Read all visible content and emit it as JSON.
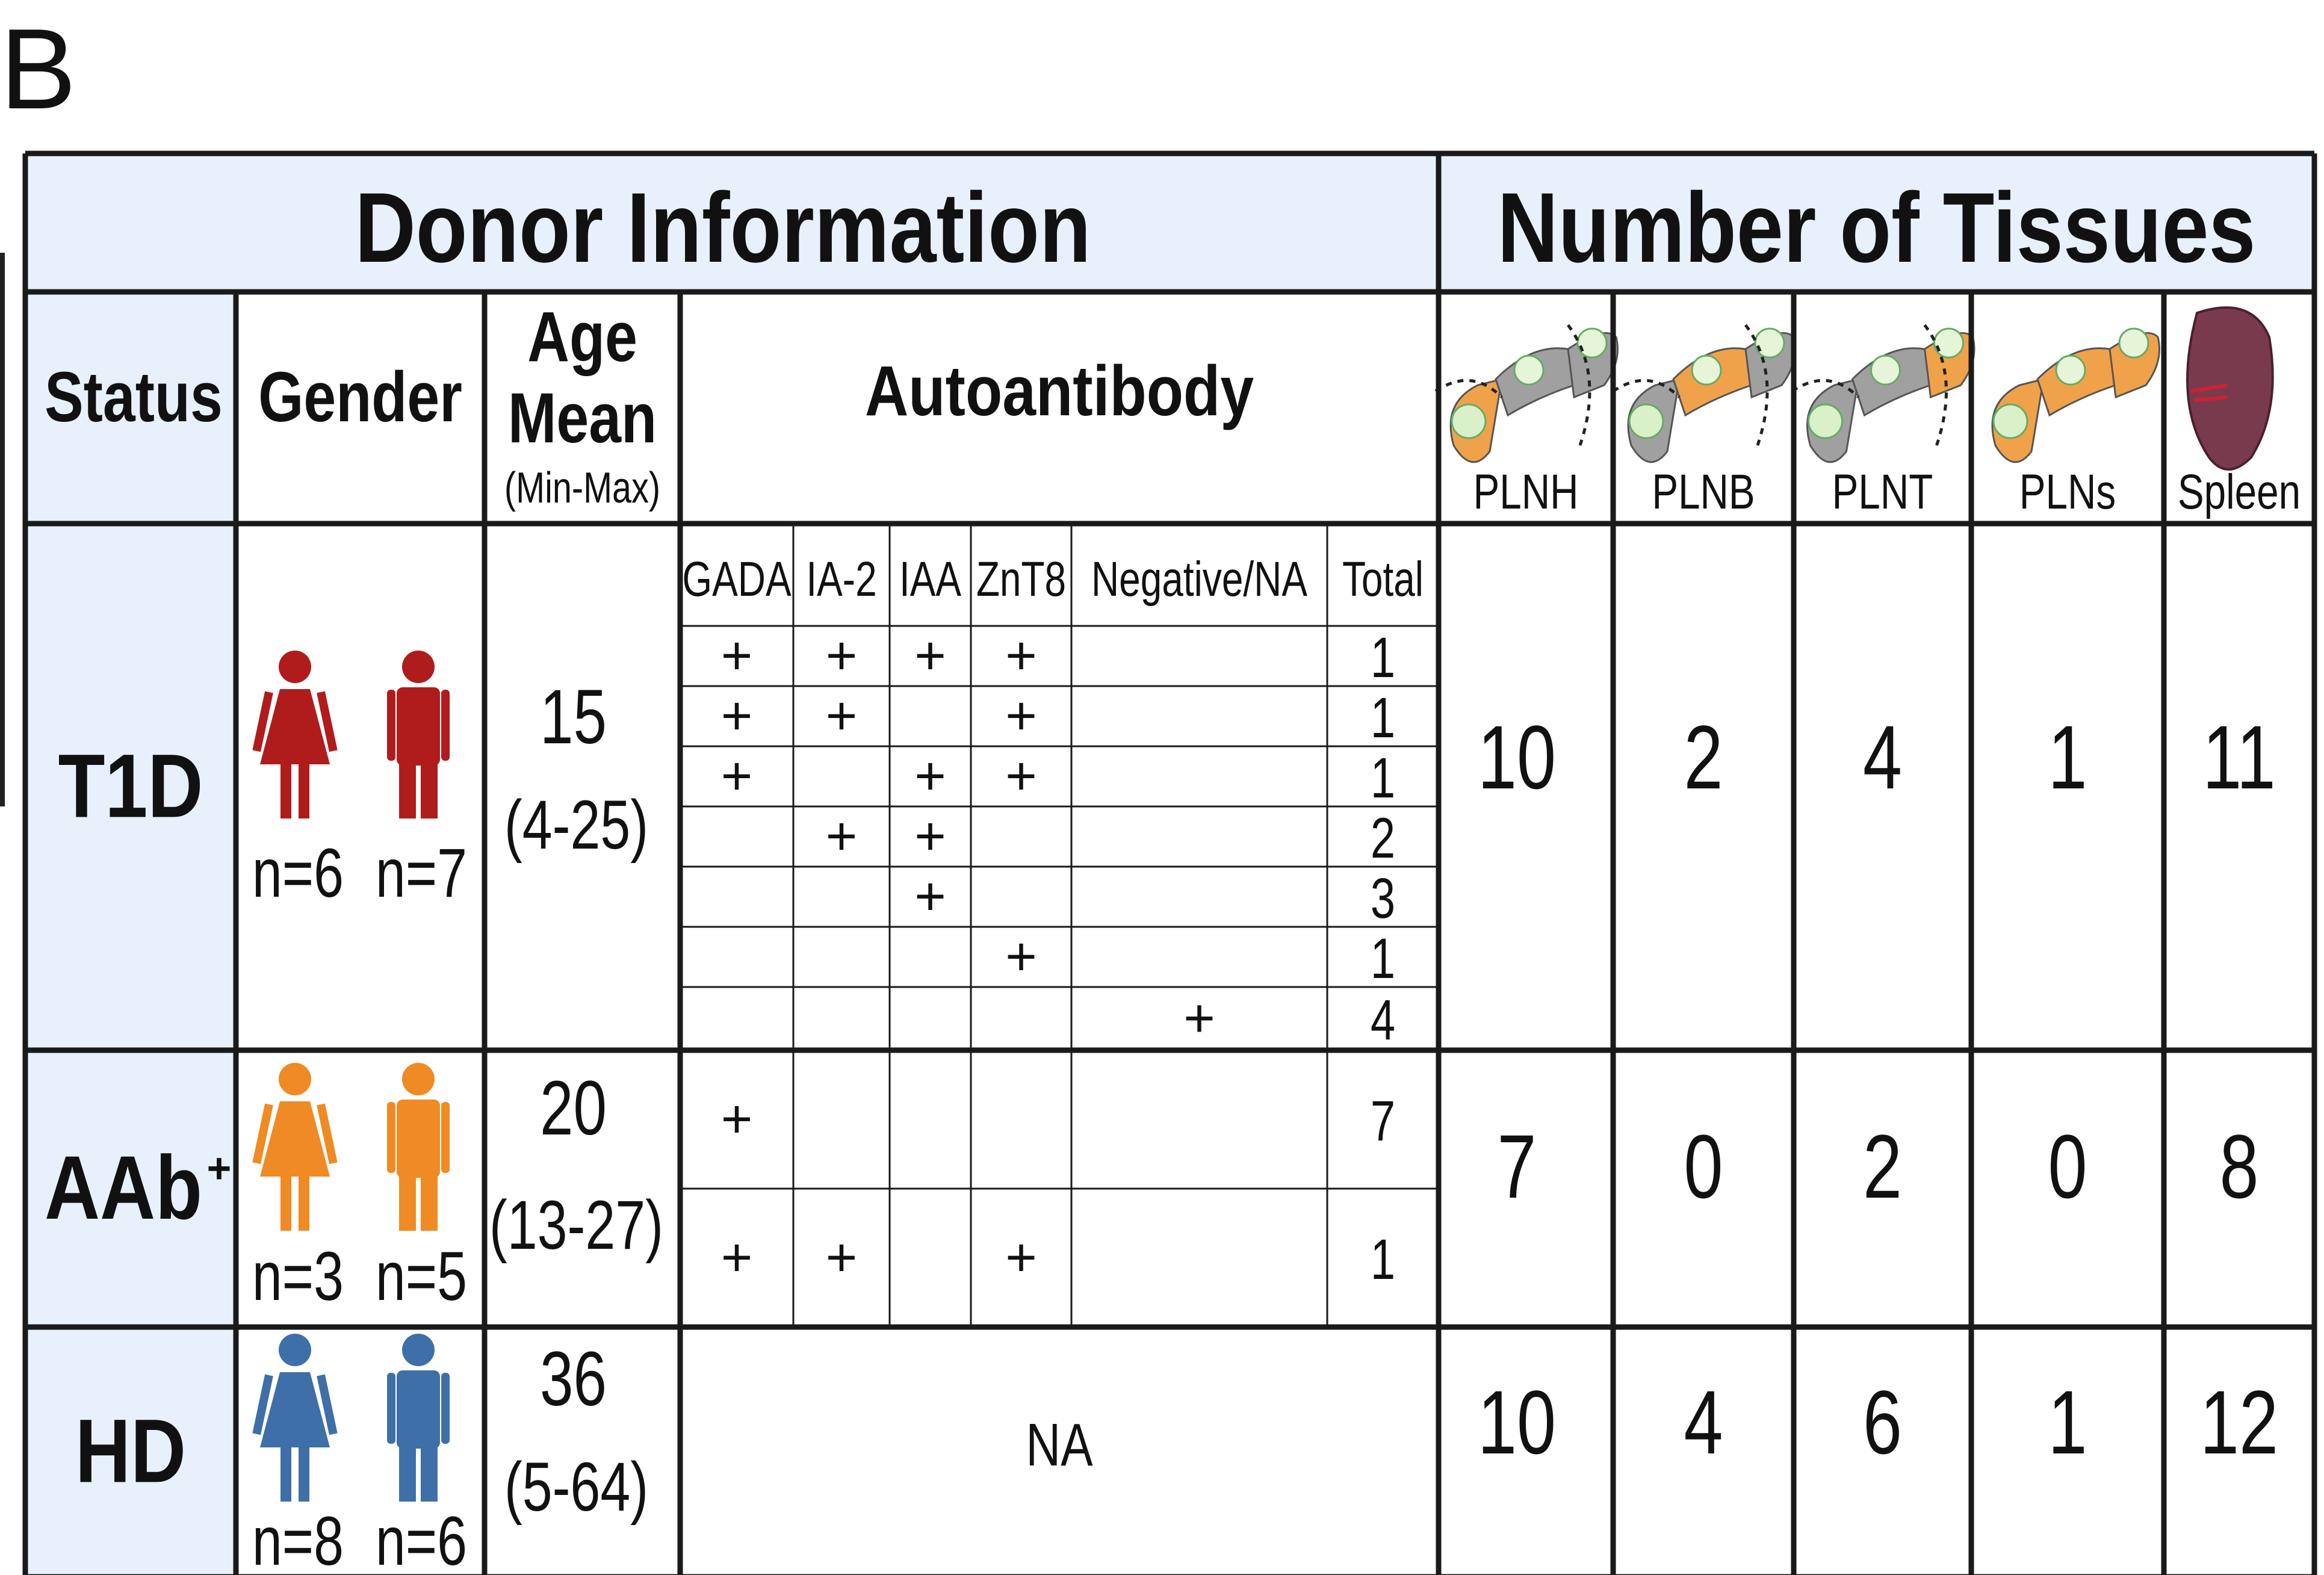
{
  "panel_label": "B",
  "headers": {
    "donor_information": "Donor Information",
    "number_of_tissues": "Number of Tissues",
    "status": "Status",
    "gender": "Gender",
    "age_line1": "Age",
    "age_line2": "Mean",
    "age_line3": "(Min-Max)",
    "autoantibody": "Autoantibody"
  },
  "tissues": [
    {
      "label": "PLNH",
      "icon": "pancreas-head-icon"
    },
    {
      "label": "PLNB",
      "icon": "pancreas-body-icon"
    },
    {
      "label": "PLNT",
      "icon": "pancreas-tail-icon"
    },
    {
      "label": "PLNs",
      "icon": "pancreas-whole-icon"
    },
    {
      "label": "Spleen",
      "icon": "spleen-icon"
    }
  ],
  "aab_columns": [
    "GADA",
    "IA-2",
    "IAA",
    "ZnT8",
    "Negative/NA",
    "Total"
  ],
  "colors": {
    "header_bg": "#e8f1fb",
    "border": "#1a1a1a",
    "t1d": "#b01c1c",
    "aab": "#f08a24",
    "hd": "#3f6fa8",
    "pancreas_orange": "#f0a24a",
    "pancreas_gray": "#a0a0a0",
    "spleen": "#7a3a4e"
  },
  "groups": [
    {
      "status": "T1D",
      "female_n": "n=6",
      "male_n": "n=7",
      "age_mean": "15",
      "age_range": "(4-25)",
      "aab_rows": [
        {
          "marks": [
            "+",
            "+",
            "+",
            "+",
            ""
          ],
          "total": "1"
        },
        {
          "marks": [
            "+",
            "+",
            "",
            "+",
            ""
          ],
          "total": "1"
        },
        {
          "marks": [
            "+",
            "",
            "+",
            "+",
            ""
          ],
          "total": "1"
        },
        {
          "marks": [
            "",
            "+",
            "+",
            "",
            ""
          ],
          "total": "2"
        },
        {
          "marks": [
            "",
            "",
            "+",
            "",
            ""
          ],
          "total": "3"
        },
        {
          "marks": [
            "",
            "",
            "",
            "+",
            ""
          ],
          "total": "1"
        },
        {
          "marks": [
            "",
            "",
            "",
            "",
            "+"
          ],
          "total": "4"
        }
      ],
      "tissue_counts": [
        "10",
        "2",
        "4",
        "1",
        "11"
      ]
    },
    {
      "status": "AAb",
      "status_sup": "+",
      "female_n": "n=3",
      "male_n": "n=5",
      "age_mean": "20",
      "age_range": "(13-27)",
      "aab_rows": [
        {
          "marks": [
            "+",
            "",
            "",
            "",
            ""
          ],
          "total": "7"
        },
        {
          "marks": [
            "+",
            "+",
            "",
            "+",
            ""
          ],
          "total": "1"
        }
      ],
      "tissue_counts": [
        "7",
        "0",
        "2",
        "0",
        "8"
      ]
    },
    {
      "status": "HD",
      "female_n": "n=8",
      "male_n": "n=6",
      "age_mean": "36",
      "age_range": "(5-64)",
      "aab_na": "NA",
      "tissue_counts": [
        "10",
        "4",
        "6",
        "1",
        "12"
      ]
    }
  ]
}
